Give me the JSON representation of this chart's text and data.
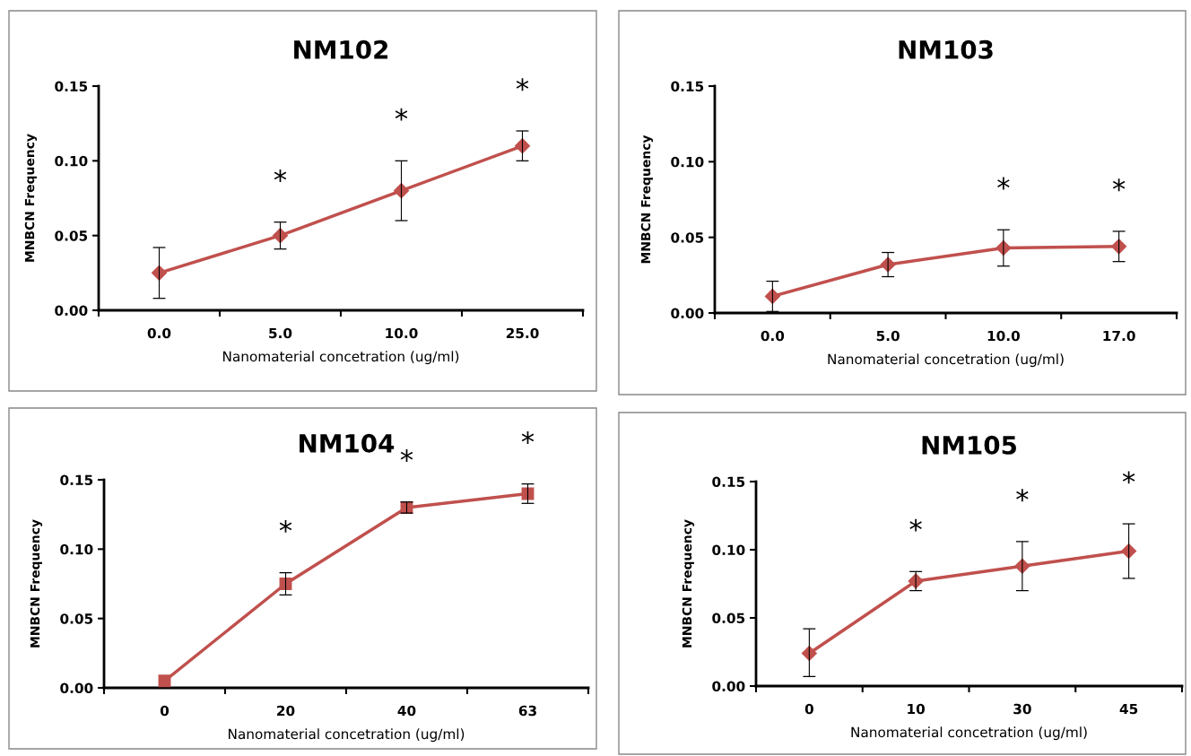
{
  "chart_data": [
    {
      "type": "line",
      "title": "NM102",
      "xlabel": "Nanomaterial concetration (ug/ml)",
      "ylabel": "MNBCN Frequency",
      "categories": [
        "0.0",
        "5.0",
        "10.0",
        "25.0"
      ],
      "color": "#c0504d",
      "marker": "diamond",
      "values": [
        0.025,
        0.05,
        0.08,
        0.11
      ],
      "errors": [
        [
          0.008,
          0.042
        ],
        [
          0.041,
          0.059
        ],
        [
          0.06,
          0.1
        ],
        [
          0.1,
          0.12
        ]
      ],
      "ylim": [
        0,
        0.15
      ],
      "yticks": [
        {
          "value": 0,
          "label": "0.00"
        },
        {
          "value": 0.05,
          "label": "0.05"
        },
        {
          "value": 0.1,
          "label": "0.10"
        },
        {
          "value": 0.15,
          "label": "0.15"
        }
      ],
      "annotations": [
        "*",
        "*",
        "*"
      ]
    },
    {
      "type": "line",
      "title": "NM103",
      "xlabel": "Nanomaterial concetration (ug/ml)",
      "ylabel": "MNBCN Frequency",
      "categories": [
        "0.0",
        "5.0",
        "10.0",
        "17.0"
      ],
      "color": "#c0504d",
      "marker": "diamond",
      "values": [
        0.011,
        0.032,
        0.043,
        0.044
      ],
      "errors": [
        [
          0.001,
          0.021
        ],
        [
          0.024,
          0.04
        ],
        [
          0.031,
          0.055
        ],
        [
          0.034,
          0.054
        ]
      ],
      "ylim": [
        0,
        0.15
      ],
      "yticks": [
        {
          "value": 0,
          "label": "0.00"
        },
        {
          "value": 0.05,
          "label": "0.05"
        },
        {
          "value": 0.1,
          "label": "0.10"
        },
        {
          "value": 0.15,
          "label": "0.15"
        }
      ],
      "annotations": [
        "*",
        "*"
      ]
    },
    {
      "type": "line",
      "title": "NM104",
      "xlabel": "Nanomaterial concetration (ug/ml)",
      "ylabel": "MNBCN Frequency",
      "categories": [
        "0",
        "20",
        "40",
        "63"
      ],
      "color": "#c0504d",
      "marker": "square",
      "values": [
        0.005,
        0.075,
        0.13,
        0.14
      ],
      "errors": [
        null,
        [
          0.067,
          0.083
        ],
        [
          0.126,
          0.134
        ],
        [
          0.133,
          0.147
        ]
      ],
      "ylim": [
        0,
        0.15
      ],
      "yticks": [
        {
          "value": 0,
          "label": "0.00"
        },
        {
          "value": 0.05,
          "label": "0.05"
        },
        {
          "value": 0.1,
          "label": "0.10"
        },
        {
          "value": 0.15,
          "label": "0.15"
        }
      ],
      "annotations": [
        "*",
        "*",
        "*"
      ]
    },
    {
      "type": "line",
      "title": "NM105",
      "xlabel": "Nanomaterial concetration (ug/ml)",
      "ylabel": "MNBCN Frequency",
      "categories": [
        "0",
        "10",
        "30",
        "45"
      ],
      "color": "#c0504d",
      "marker": "diamond",
      "values": [
        0.024,
        0.077,
        0.088,
        0.099
      ],
      "errors": [
        [
          0.007,
          0.042
        ],
        [
          0.07,
          0.084
        ],
        [
          0.07,
          0.106
        ],
        [
          0.079,
          0.119
        ]
      ],
      "ylim": [
        0,
        0.15
      ],
      "yticks": [
        {
          "value": 0,
          "label": "0.00"
        },
        {
          "value": 0.05,
          "label": "0.05"
        },
        {
          "value": 0.1,
          "label": "0.10"
        },
        {
          "value": 0.15,
          "label": "0.15"
        }
      ],
      "annotations": [
        "*",
        "*",
        "*"
      ]
    }
  ]
}
